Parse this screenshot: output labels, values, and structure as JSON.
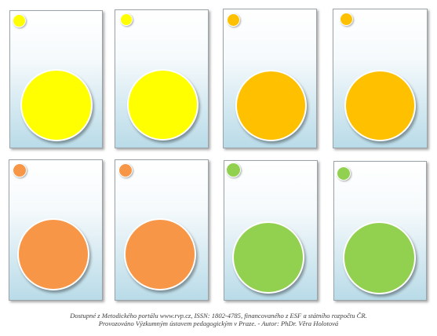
{
  "cards": [
    {
      "color_name": "yellow",
      "color": "#ffff00"
    },
    {
      "color_name": "yellow",
      "color": "#ffff00"
    },
    {
      "color_name": "orange",
      "color": "#ffc000"
    },
    {
      "color_name": "orange",
      "color": "#ffc000"
    },
    {
      "color_name": "light-orange",
      "color": "#f79646"
    },
    {
      "color_name": "light-orange",
      "color": "#f79646"
    },
    {
      "color_name": "green",
      "color": "#92d050"
    },
    {
      "color_name": "green",
      "color": "#92d050"
    }
  ],
  "footer": {
    "line1": "Dostupné z Metodického portálu www.rvp.cz, ISSN: 1802-4785, financovaného z ESF a státního rozpočtu ČR.",
    "line2": "Provozováno Výzkumným ústavem pedagogickým v Praze. - Autor: PhDr. Věra Holotová"
  }
}
